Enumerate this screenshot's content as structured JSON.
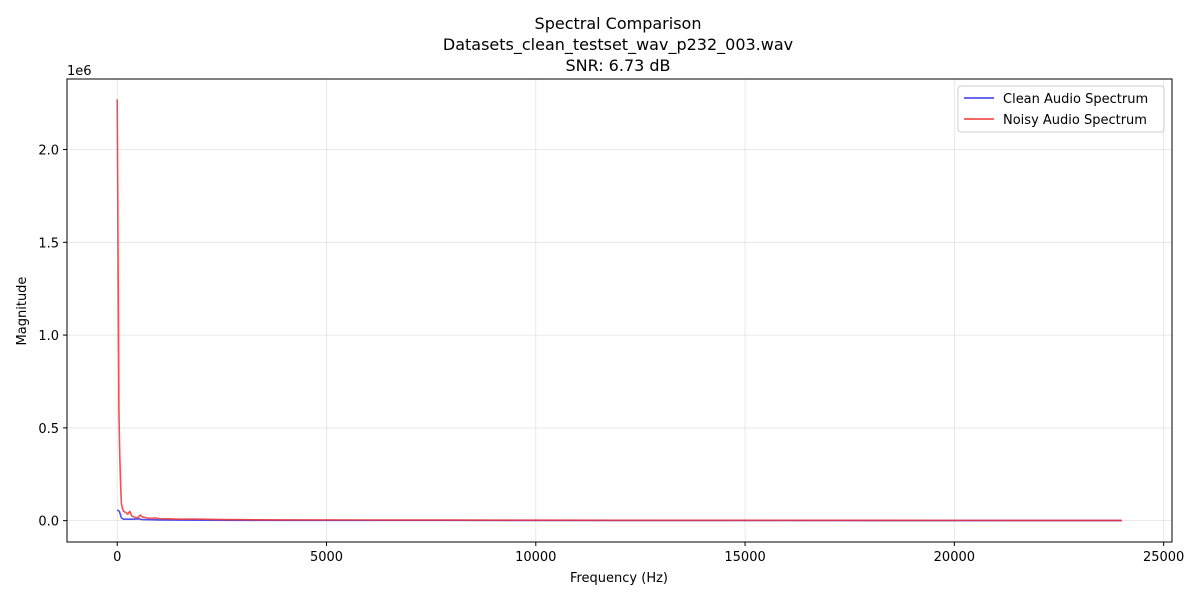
{
  "chart_data": {
    "type": "line",
    "title_lines": [
      "Spectral Comparison",
      "Datasets_clean_testset_wav_p232_003.wav",
      "SNR: 6.73 dB"
    ],
    "xlabel": "Frequency (Hz)",
    "ylabel": "Magnitude",
    "y_offset_label": "1e6",
    "xlim": [
      -1200,
      25200
    ],
    "ylim": [
      -115000,
      2380000
    ],
    "x_ticks": [
      0,
      5000,
      10000,
      15000,
      20000,
      25000
    ],
    "x_tick_labels": [
      "0",
      "5000",
      "10000",
      "15000",
      "20000",
      "25000"
    ],
    "y_ticks": [
      0,
      500000,
      1000000,
      1500000,
      2000000
    ],
    "y_tick_labels": [
      "0.0",
      "0.5",
      "1.0",
      "1.5",
      "2.0"
    ],
    "grid": true,
    "legend_position": "top-right",
    "series": [
      {
        "name": "Clean Audio Spectrum",
        "color": "#3333ee",
        "x": [
          0,
          50,
          100,
          150,
          200,
          300,
          400,
          500,
          600,
          800,
          1000,
          1500,
          2000,
          3000,
          4000,
          6000,
          8000,
          10000,
          12000,
          16000,
          20000,
          24000
        ],
        "y": [
          58000,
          50000,
          15000,
          8000,
          8000,
          8000,
          8000,
          10000,
          6000,
          5000,
          4000,
          3000,
          2500,
          2000,
          2000,
          1500,
          1500,
          1200,
          1000,
          800,
          700,
          600
        ]
      },
      {
        "name": "Noisy Audio Spectrum",
        "color": "#ee3333",
        "x": [
          0,
          20,
          40,
          60,
          80,
          100,
          120,
          150,
          200,
          250,
          300,
          350,
          400,
          450,
          500,
          550,
          600,
          700,
          800,
          900,
          1000,
          1200,
          1500,
          1800,
          2000,
          2500,
          3000,
          4000,
          6000,
          8000,
          10000,
          12000,
          16000,
          20000,
          24000
        ],
        "y": [
          2270000,
          1400000,
          600000,
          350000,
          200000,
          90000,
          70000,
          50000,
          45000,
          35000,
          50000,
          25000,
          20000,
          15000,
          18000,
          30000,
          20000,
          15000,
          12000,
          15000,
          11000,
          10000,
          8000,
          9000,
          8000,
          6000,
          5000,
          4000,
          3500,
          3000,
          2500,
          2000,
          1800,
          1500,
          1200
        ]
      }
    ]
  }
}
